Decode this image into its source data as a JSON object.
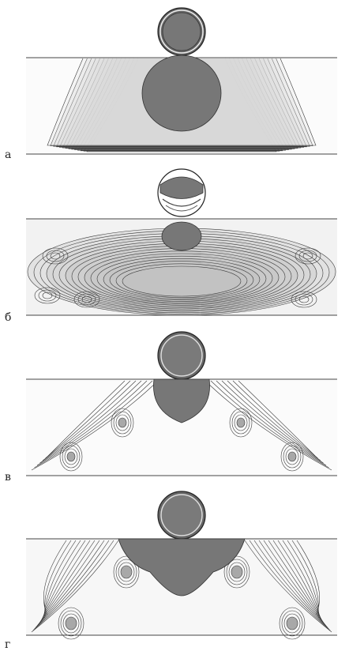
{
  "figure": {
    "panels": [
      {
        "label": "а",
        "pattern": "bell"
      },
      {
        "label": "б",
        "pattern": "layered"
      },
      {
        "label": "в",
        "pattern": "x-spread"
      },
      {
        "label": "г",
        "pattern": "wide-x"
      }
    ]
  },
  "colors": {
    "contour": "#3a3a3a",
    "fill_dark": "#7a7a7a",
    "fill_mid": "#a8a8a8",
    "fill_light": "#d6d6d6",
    "background": "#f4f4f4"
  }
}
